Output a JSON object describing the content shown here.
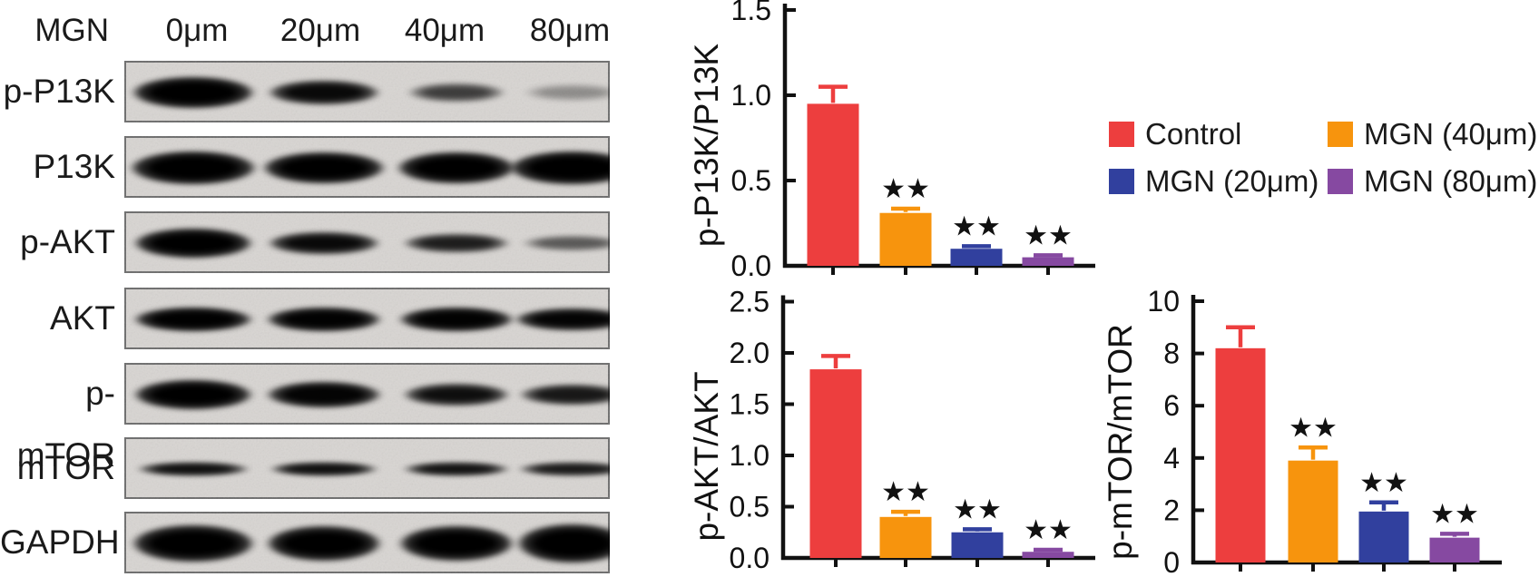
{
  "blot_panel": {
    "treatment_label": "MGN",
    "lane_labels": [
      "0μm",
      "20μm",
      "40μm",
      "80μm"
    ],
    "rows": [
      {
        "label": "p-P13K",
        "band_intensities": [
          1.0,
          0.85,
          0.5,
          0.2
        ]
      },
      {
        "label": "P13K",
        "band_intensities": [
          1.0,
          1.0,
          1.0,
          1.0
        ]
      },
      {
        "label": "p-AKT",
        "band_intensities": [
          1.0,
          0.85,
          0.68,
          0.38
        ]
      },
      {
        "label": "AKT",
        "band_intensities": [
          0.97,
          0.95,
          0.95,
          0.92
        ]
      },
      {
        "label": "p-mTOR",
        "band_intensities": [
          1.0,
          0.92,
          0.8,
          0.72
        ]
      },
      {
        "label": "mTOR",
        "band_intensities": [
          0.8,
          0.8,
          0.78,
          0.72
        ]
      },
      {
        "label": "GAPDH",
        "band_intensities": [
          1.0,
          1.0,
          1.0,
          1.0
        ]
      }
    ]
  },
  "legend": {
    "items": [
      {
        "label": "Control",
        "color": "#ED3E3E"
      },
      {
        "label": "MGN (40μm)",
        "color": "#F7940D"
      },
      {
        "label": "MGN (20μm)",
        "color": "#31409E"
      },
      {
        "label": "MGN (80μm)",
        "color": "#8649A1"
      }
    ]
  },
  "colors": {
    "control_red": "#ED3E3E",
    "mgn40_orange": "#F7940D",
    "mgn20_blue": "#31409E",
    "mgn80_purple": "#8649A1",
    "axis_black": "#111111"
  },
  "significance_symbol": "★★",
  "chart_data": [
    {
      "type": "bar",
      "ylabel": "p-P13K/P13K",
      "categories": [
        "Control",
        "MGN (40μm)",
        "MGN (20μm)",
        "MGN (80μm)"
      ],
      "values": [
        0.95,
        0.31,
        0.1,
        0.05
      ],
      "errors": [
        0.1,
        0.025,
        0.015,
        0.012
      ],
      "significance": [
        "",
        "**",
        "**",
        "**"
      ],
      "bar_colors": [
        "#ED3E3E",
        "#F7940D",
        "#31409E",
        "#8649A1"
      ],
      "ylim": [
        0,
        1.5
      ],
      "yticks": [
        "0.0",
        "0.5",
        "1.0",
        "1.5"
      ],
      "xlabel": "",
      "grid": false,
      "legend_position": "right"
    },
    {
      "type": "bar",
      "ylabel": "p-AKT/AKT",
      "categories": [
        "Control",
        "MGN (40μm)",
        "MGN (20μm)",
        "MGN (80μm)"
      ],
      "values": [
        1.84,
        0.4,
        0.25,
        0.06
      ],
      "errors": [
        0.13,
        0.05,
        0.03,
        0.02
      ],
      "significance": [
        "",
        "**",
        "**",
        "**"
      ],
      "bar_colors": [
        "#ED3E3E",
        "#F7940D",
        "#31409E",
        "#8649A1"
      ],
      "ylim": [
        0,
        2.5
      ],
      "yticks": [
        "0.0",
        "0.5",
        "1.0",
        "1.5",
        "2.0",
        "2.5"
      ],
      "xlabel": "",
      "grid": false
    },
    {
      "type": "bar",
      "ylabel": "p-mTOR/mTOR",
      "categories": [
        "Control",
        "MGN (40μm)",
        "MGN (20μm)",
        "MGN (80μm)"
      ],
      "values": [
        8.2,
        3.9,
        1.95,
        0.95
      ],
      "errors": [
        0.8,
        0.5,
        0.35,
        0.15
      ],
      "significance": [
        "",
        "**",
        "**",
        "**"
      ],
      "bar_colors": [
        "#ED3E3E",
        "#F7940D",
        "#31409E",
        "#8649A1"
      ],
      "ylim": [
        0,
        10
      ],
      "yticks": [
        "0",
        "2",
        "4",
        "6",
        "8",
        "10"
      ],
      "xlabel": "",
      "grid": false
    }
  ]
}
